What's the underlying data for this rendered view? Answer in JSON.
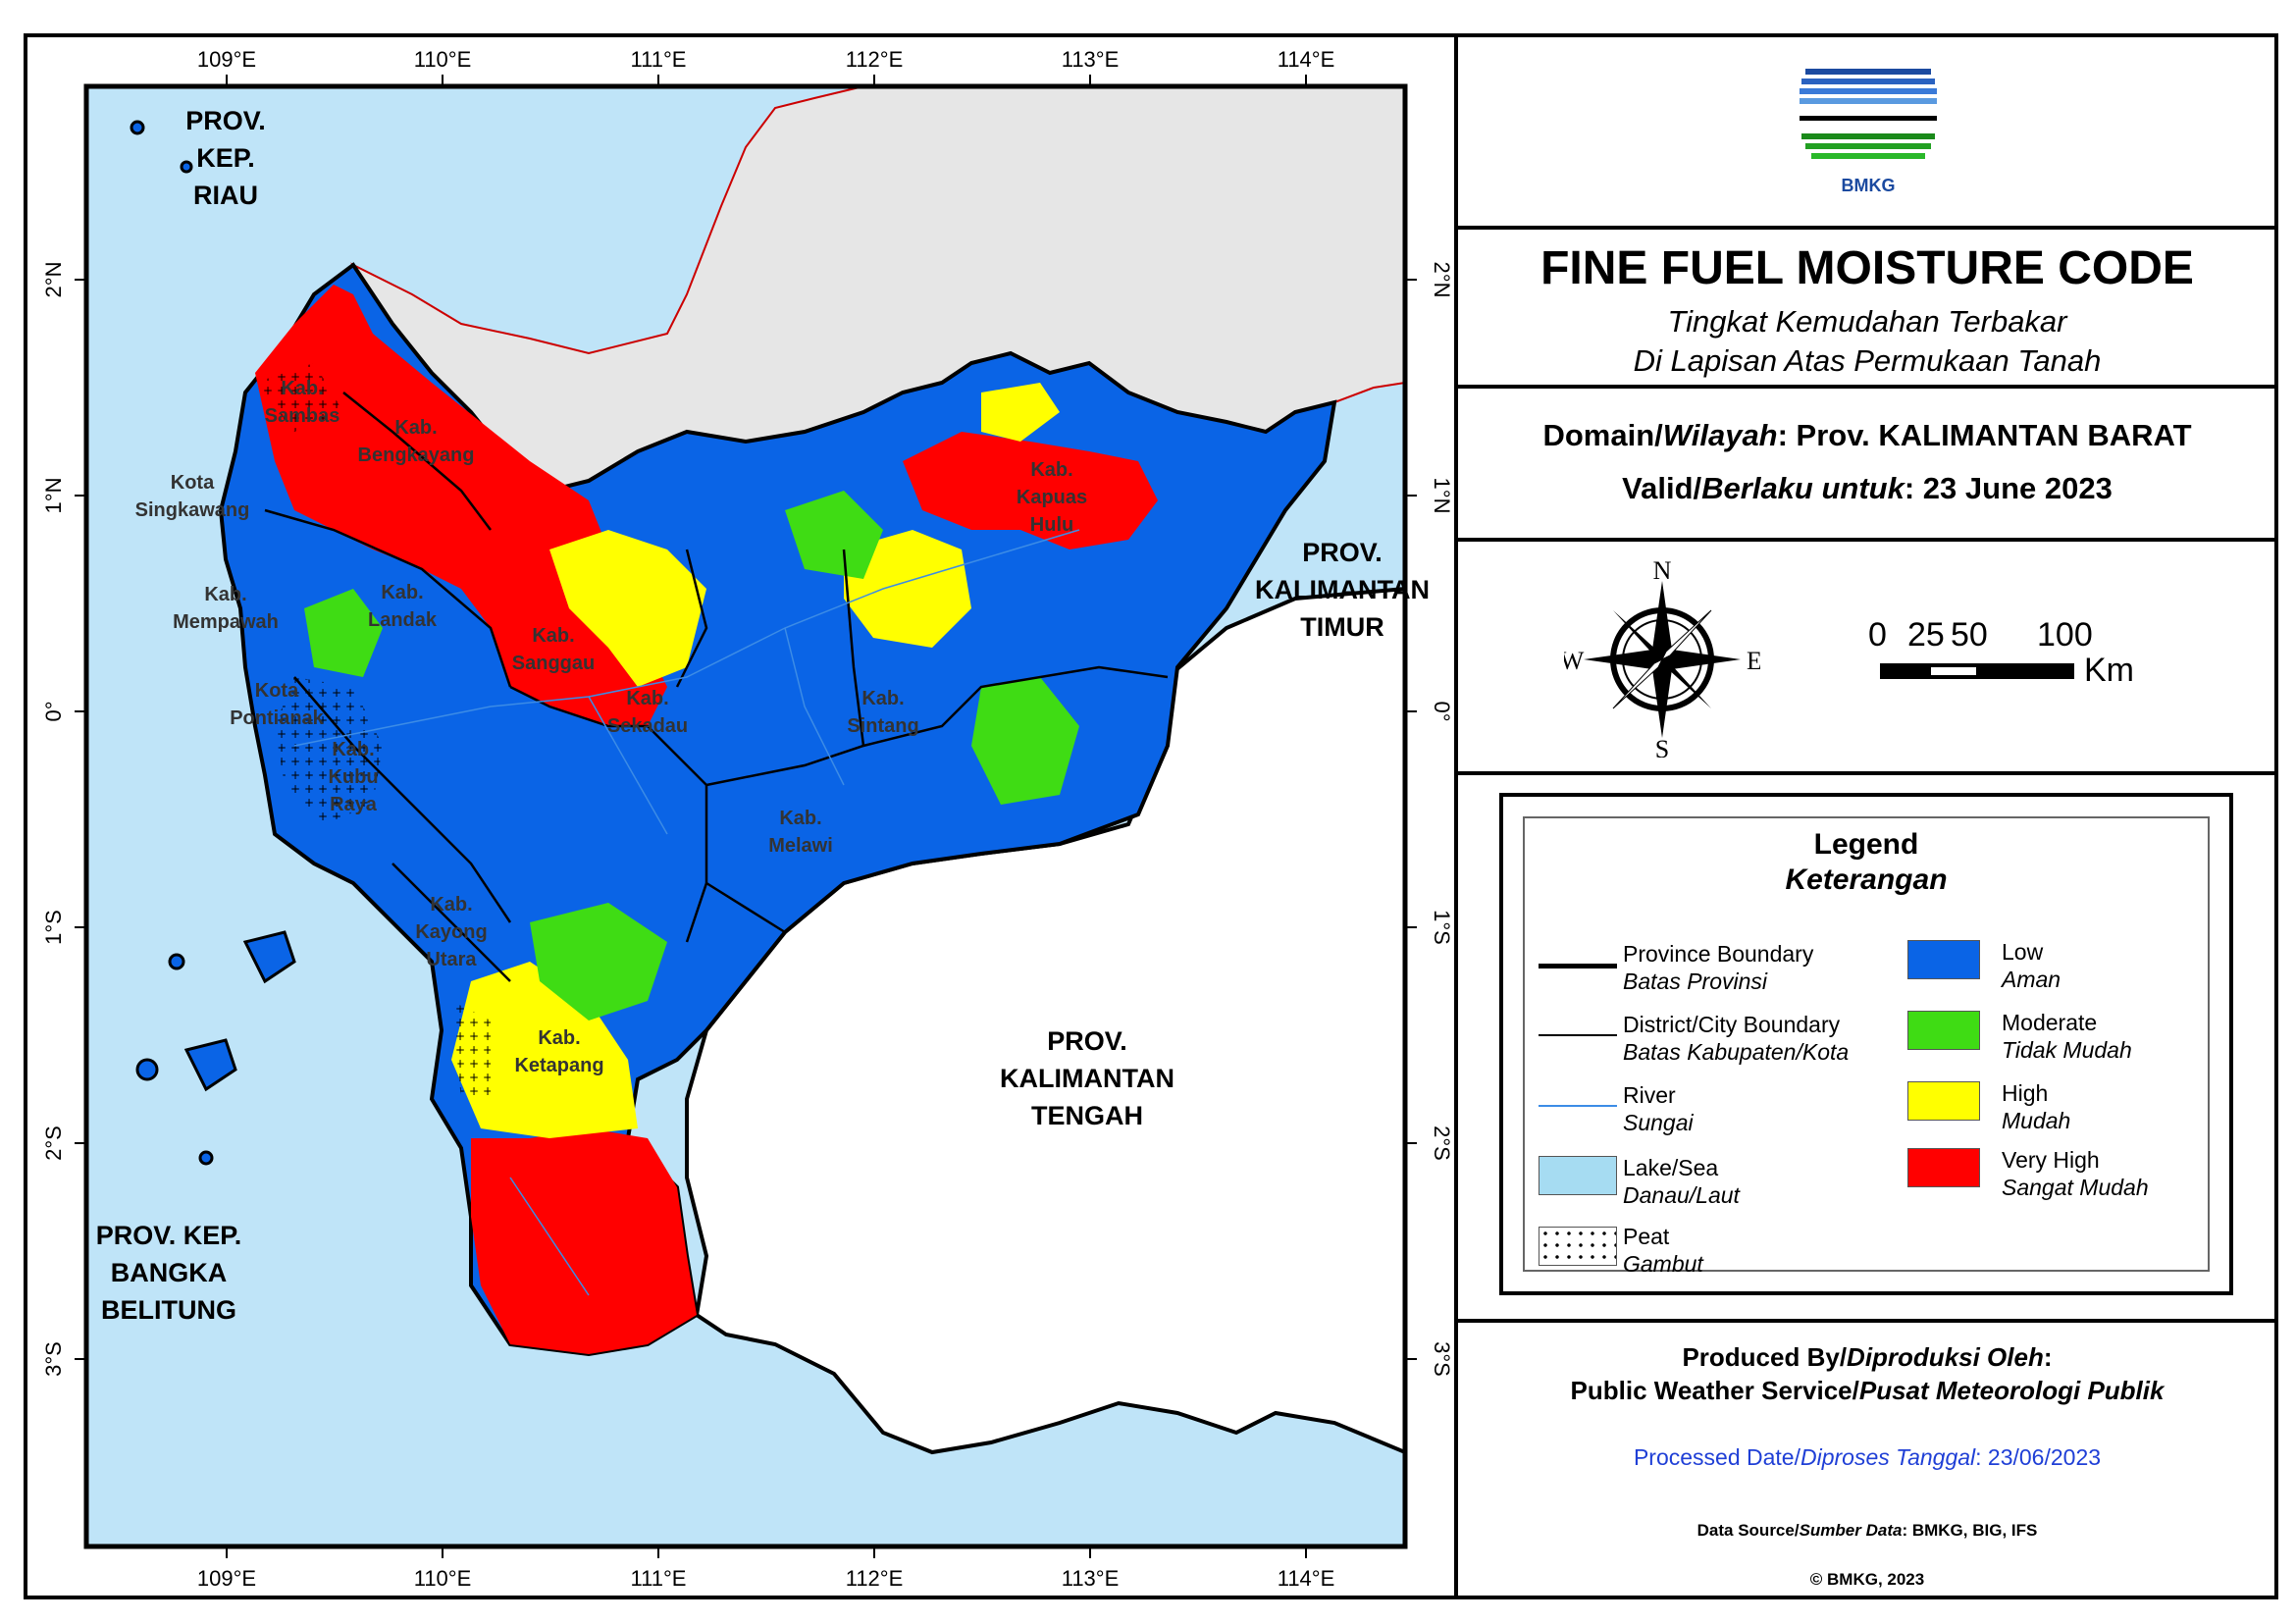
{
  "title": "FINE FUEL MOISTURE CODE",
  "subtitle_line1": "Tingkat Kemudahan Terbakar",
  "subtitle_line2": "Di Lapisan Atas Permukaan Tanah",
  "logo_text": "BMKG",
  "domain_label": "Domain/",
  "domain_label_id": "Wilayah",
  "domain_value": ": Prov. KALIMANTAN BARAT",
  "valid_label": "Valid/",
  "valid_label_id": "Berlaku untuk",
  "valid_value": ": 23 June 2023",
  "compass": {
    "n": "N",
    "s": "S",
    "e": "E",
    "w": "W"
  },
  "scale": {
    "t0": "0",
    "t1": "25",
    "t2": "50",
    "t3": "100",
    "unit": "Km"
  },
  "legend": {
    "title": "Legend",
    "title_id": "Keterangan",
    "items": [
      {
        "en": "Province Boundary",
        "id": "Batas Provinsi"
      },
      {
        "en": "District/City Boundary",
        "id": "Batas Kabupaten/Kota"
      },
      {
        "en": "River",
        "id": "Sungai"
      },
      {
        "en": "Lake/Sea",
        "id": "Danau/Laut"
      },
      {
        "en": "Peat",
        "id": "Gambut"
      }
    ],
    "classes": [
      {
        "en": "Low",
        "id": "Aman",
        "color": "#0a64e6"
      },
      {
        "en": "Moderate",
        "id": "Tidak Mudah",
        "color": "#3fdc14"
      },
      {
        "en": "High",
        "id": "Mudah",
        "color": "#ffff00"
      },
      {
        "en": "Very High",
        "id": "Sangat Mudah",
        "color": "#ff0000"
      }
    ]
  },
  "produced_by": "Produced By/",
  "produced_by_id": "Diproduksi Oleh",
  "producer": "Public Weather Service/",
  "producer_id": "Pusat Meteorologi Publik",
  "processed_label": "Processed Date/",
  "processed_label_id": "Diproses Tanggal",
  "processed_value": ": 23/06/2023",
  "source_label": "Data Source/",
  "source_label_id": "Sumber Data",
  "source_value": ": BMKG, BIG, IFS",
  "copyright": "© BMKG, 2023",
  "map": {
    "lon_ticks": [
      "109°E",
      "110°E",
      "111°E",
      "112°E",
      "113°E",
      "114°E"
    ],
    "lat_ticks": [
      "2°N",
      "1°N",
      "0°",
      "1°S",
      "2°S",
      "3°S"
    ],
    "provinces": [
      {
        "name_lines": [
          "PROV.",
          "KEP.",
          "RIAU"
        ]
      },
      {
        "name_lines": [
          "PROV.",
          "KALIMANTAN",
          "TIMUR"
        ]
      },
      {
        "name_lines": [
          "PROV.",
          "KALIMANTAN",
          "TENGAH"
        ]
      },
      {
        "name_lines": [
          "PROV. KEP.",
          "BANGKA",
          "BELITUNG"
        ]
      }
    ],
    "districts": [
      {
        "name_lines": [
          "Kab.",
          "Sambas"
        ]
      },
      {
        "name_lines": [
          "Kab.",
          "Bengkayang"
        ]
      },
      {
        "name_lines": [
          "Kota",
          "Singkawang"
        ]
      },
      {
        "name_lines": [
          "Kab.",
          "Mempawah"
        ]
      },
      {
        "name_lines": [
          "Kab.",
          "Landak"
        ]
      },
      {
        "name_lines": [
          "Kab.",
          "Sanggau"
        ]
      },
      {
        "name_lines": [
          "Kota",
          "Pontianak"
        ]
      },
      {
        "name_lines": [
          "Kab.",
          "Kubu",
          "Raya"
        ]
      },
      {
        "name_lines": [
          "Kab.",
          "Sekadau"
        ]
      },
      {
        "name_lines": [
          "Kab.",
          "Sintang"
        ]
      },
      {
        "name_lines": [
          "Kab.",
          "Kapuas",
          "Hulu"
        ]
      },
      {
        "name_lines": [
          "Kab.",
          "Melawi"
        ]
      },
      {
        "name_lines": [
          "Kab.",
          "Kayong",
          "Utara"
        ]
      },
      {
        "name_lines": [
          "Kab.",
          "Ketapang"
        ]
      }
    ],
    "colors": {
      "sea": "#bfe4f8",
      "land_other": "#e6e6e6",
      "land_white": "#ffffff"
    }
  }
}
